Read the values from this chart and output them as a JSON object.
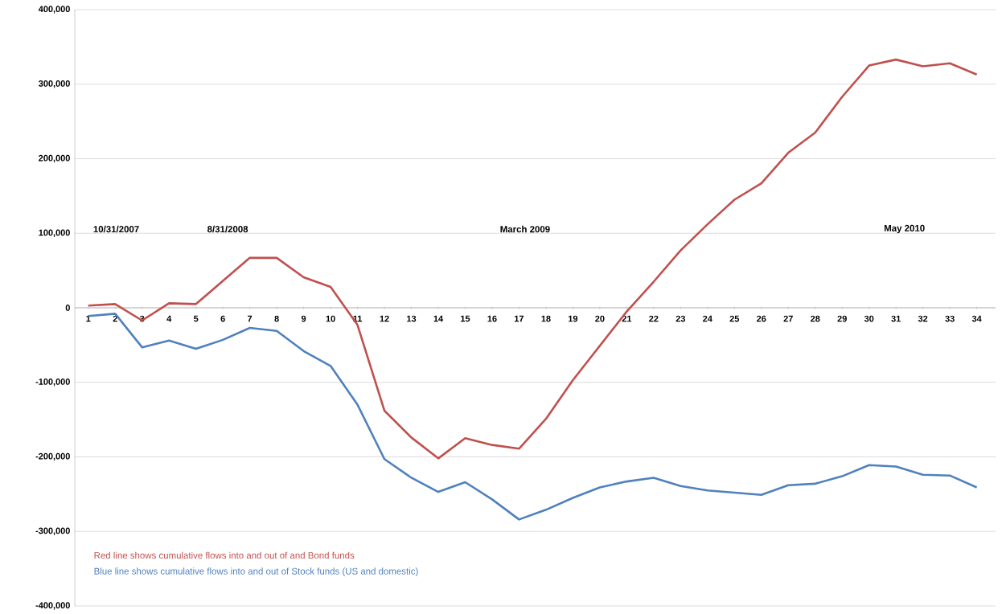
{
  "chart_data": {
    "type": "line",
    "categories": [
      "1",
      "2",
      "3",
      "4",
      "5",
      "6",
      "7",
      "8",
      "9",
      "10",
      "11",
      "12",
      "13",
      "14",
      "15",
      "16",
      "17",
      "18",
      "19",
      "20",
      "21",
      "22",
      "23",
      "24",
      "25",
      "26",
      "27",
      "28",
      "29",
      "30",
      "31",
      "32",
      "33",
      "34"
    ],
    "series": [
      {
        "color": "#c0504d",
        "values": [
          3000,
          5000,
          -17000,
          6000,
          5000,
          36000,
          67000,
          67000,
          41000,
          28000,
          -23000,
          -138000,
          -174000,
          -202000,
          -175000,
          -184000,
          -189000,
          -149000,
          -97000,
          -51000,
          -5000,
          35000,
          77000,
          112000,
          145000,
          167000,
          208000,
          235000,
          283000,
          325000,
          333000,
          324000,
          328000,
          313000
        ]
      },
      {
        "color": "#4f81bd",
        "values": [
          -11000,
          -8000,
          -53000,
          -44000,
          -55000,
          -43000,
          -27000,
          -31000,
          -58000,
          -78000,
          -130000,
          -203000,
          -228000,
          -247000,
          -234000,
          -257000,
          -284000,
          -271000,
          -255000,
          -241000,
          -233000,
          -228000,
          -239000,
          -245000,
          -248000,
          -251000,
          -238000,
          -236000,
          -226000,
          -211000,
          -213000,
          -224000,
          -225000,
          -241000
        ]
      }
    ],
    "ylim": [
      -400000,
      400000
    ],
    "yticks": [
      {
        "value": -400000,
        "label": "-400,000"
      },
      {
        "value": -300000,
        "label": "-300,000"
      },
      {
        "value": -200000,
        "label": "-200,000"
      },
      {
        "value": -100000,
        "label": "-100,000"
      },
      0,
      {
        "value": 100000,
        "label": "100,000"
      },
      {
        "value": 200000,
        "label": "200,000"
      },
      {
        "value": 300000,
        "label": "300,000"
      },
      {
        "value": 400000,
        "label": "400,000"
      }
    ],
    "grid": "y",
    "marker": "none",
    "line_style": "solid",
    "annotations": [
      "10/31/2007",
      "8/31/2008",
      "March 2009",
      "May 2010",
      "Red line shows cumulative flows into and out of and Bond funds",
      "Blue  line shows cumulative flows into and out of Stock funds (US and domestic)"
    ]
  }
}
